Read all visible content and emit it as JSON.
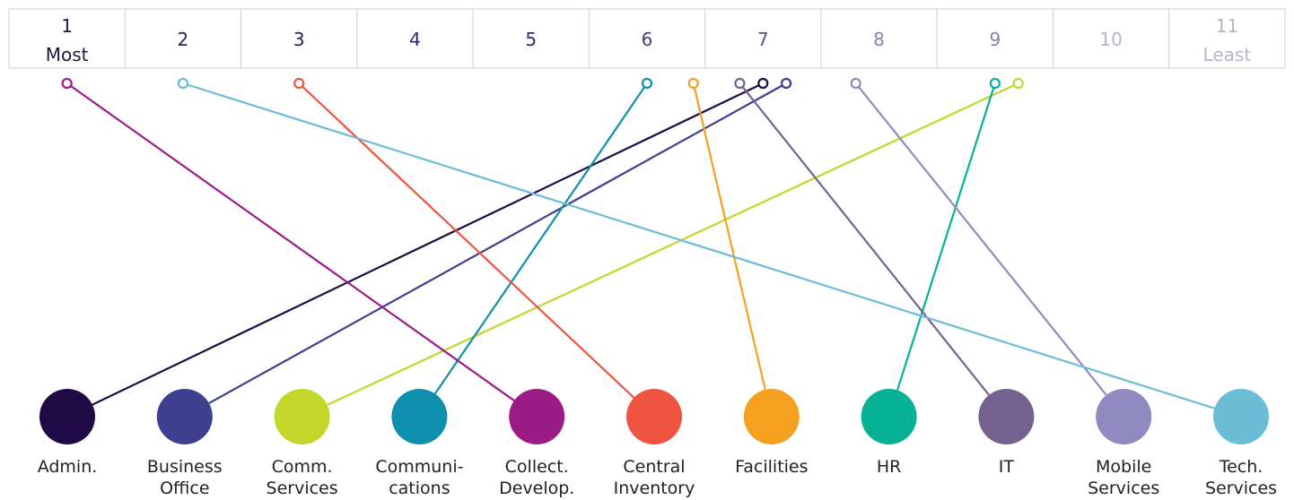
{
  "chart_data": {
    "type": "slope",
    "title": "",
    "ranks": [
      {
        "value": "1",
        "sub": "Most",
        "color": "#1f1540"
      },
      {
        "value": "2",
        "sub": "",
        "color": "#2a1f55"
      },
      {
        "value": "3",
        "sub": "",
        "color": "#2a1f55"
      },
      {
        "value": "4",
        "sub": "",
        "color": "#2f2460"
      },
      {
        "value": "5",
        "sub": "",
        "color": "#3a2a70"
      },
      {
        "value": "6",
        "sub": "",
        "color": "#4a3c78"
      },
      {
        "value": "7",
        "sub": "",
        "color": "#5a4e80"
      },
      {
        "value": "8",
        "sub": "",
        "color": "#8a82a6"
      },
      {
        "value": "9",
        "sub": "",
        "color": "#8a82a6"
      },
      {
        "value": "10",
        "sub": "",
        "color": "#b8b4c8"
      },
      {
        "value": "11",
        "sub": "Least",
        "color": "#b8b4c8"
      }
    ],
    "series": [
      {
        "label": [
          "Admin."
        ],
        "rank": 7.0,
        "color": "#1f0a45"
      },
      {
        "label": [
          "Business",
          "Office"
        ],
        "rank": 7.2,
        "color": "#3f3f8f"
      },
      {
        "label": [
          "Comm.",
          "Services"
        ],
        "rank": 9.2,
        "color": "#c3d72a"
      },
      {
        "label": [
          "Communi-",
          "cations"
        ],
        "rank": 6.0,
        "color": "#0f8fae"
      },
      {
        "label": [
          "Collect.",
          "Develop."
        ],
        "rank": 1.0,
        "color": "#9b1c87"
      },
      {
        "label": [
          "Central",
          "Inventory"
        ],
        "rank": 3.0,
        "color": "#ef5440"
      },
      {
        "label": [
          "Facilities"
        ],
        "rank": 6.4,
        "color": "#f5a020"
      },
      {
        "label": [
          "HR"
        ],
        "rank": 9.0,
        "color": "#05b296"
      },
      {
        "label": [
          "IT"
        ],
        "rank": 6.8,
        "color": "#73628f"
      },
      {
        "label": [
          "Mobile",
          "Services"
        ],
        "rank": 7.8,
        "color": "#908ac0"
      },
      {
        "label": [
          "Tech.",
          "Services"
        ],
        "rank": 2.0,
        "color": "#6bbdd5"
      }
    ]
  }
}
